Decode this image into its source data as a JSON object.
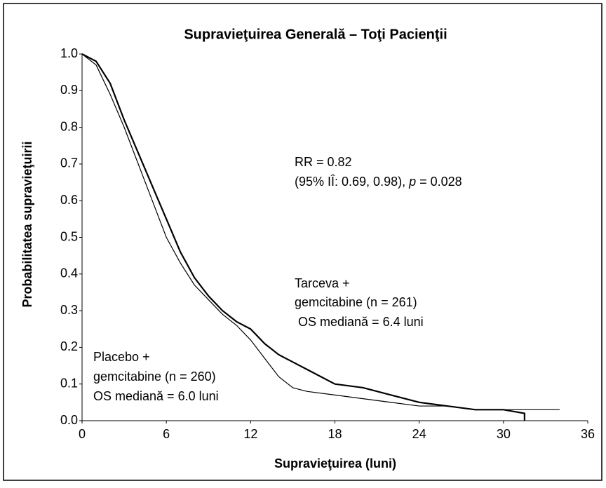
{
  "chart_data": {
    "type": "line",
    "title": "Supravieţuirea Generală – Toţi Pacienţii",
    "xlabel": "Supravieţuirea (luni)",
    "ylabel": "Probabilitatea supravieţuirii",
    "xlim": [
      0,
      36
    ],
    "xticks": [
      0,
      6,
      12,
      18,
      24,
      30,
      36
    ],
    "ylim": [
      0,
      1
    ],
    "yticks": [
      {
        "value": 0,
        "label": "0.0"
      },
      {
        "value": 0.1,
        "label": "0.1"
      },
      {
        "value": 0.2,
        "label": "0.2"
      },
      {
        "value": 0.3,
        "label": "0.3"
      },
      {
        "value": 0.4,
        "label": "0.4"
      },
      {
        "value": 0.5,
        "label": "0.5"
      },
      {
        "value": 0.6,
        "label": "0.6"
      },
      {
        "value": 0.7,
        "label": "0.7"
      },
      {
        "value": 0.8,
        "label": "0.8"
      },
      {
        "value": 0.9,
        "label": "0.9"
      },
      {
        "value": 1.0,
        "label": "1.0"
      }
    ],
    "series": [
      {
        "color": "#000000",
        "x": [
          0,
          1,
          2,
          3,
          4,
          5,
          6,
          7,
          8,
          9,
          10,
          11,
          12,
          13,
          14,
          15,
          16,
          17,
          18,
          20,
          22,
          24,
          26,
          28,
          30,
          31.5,
          31.5
        ],
        "values": [
          1.0,
          0.98,
          0.92,
          0.82,
          0.73,
          0.64,
          0.55,
          0.46,
          0.39,
          0.34,
          0.3,
          0.27,
          0.25,
          0.21,
          0.18,
          0.16,
          0.14,
          0.12,
          0.1,
          0.09,
          0.07,
          0.05,
          0.04,
          0.03,
          0.03,
          0.02,
          0
        ]
      },
      {
        "color": "#000000",
        "x": [
          0,
          1,
          2,
          3,
          4,
          5,
          6,
          7,
          8,
          9,
          10,
          11,
          12,
          13,
          14,
          15,
          16,
          18,
          20,
          22,
          24,
          26,
          28,
          31,
          34
        ],
        "values": [
          1.0,
          0.97,
          0.89,
          0.8,
          0.7,
          0.6,
          0.5,
          0.43,
          0.37,
          0.33,
          0.29,
          0.26,
          0.22,
          0.17,
          0.12,
          0.09,
          0.08,
          0.07,
          0.06,
          0.05,
          0.04,
          0.04,
          0.03,
          0.03,
          0.03
        ]
      }
    ],
    "annotations": {
      "rr": "RR = 0.82",
      "ci": "(95% IÎ: 0.69, 0.98), ",
      "p": "p",
      "pval": " = 0.028",
      "tarceva": [
        "Tarceva +",
        "gemcitabine (n = 261)",
        " OS mediană = 6.4 luni"
      ],
      "placebo": [
        "Placebo +",
        "gemcitabine (n = 260)",
        "OS mediană = 6.0 luni"
      ]
    }
  }
}
